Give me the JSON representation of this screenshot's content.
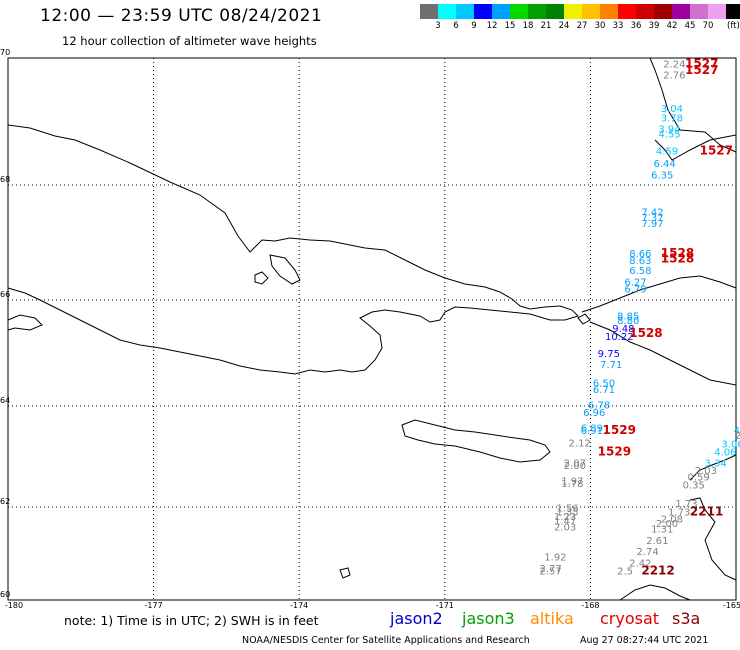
{
  "header": {
    "title": "12:00 — 23:59 UTC 08/24/2021",
    "subtitle": "12 hour collection of altimeter wave heights"
  },
  "colorbar": {
    "colors": [
      "#707070",
      "#00ffff",
      "#00c8ff",
      "#0000ff",
      "#00a0ff",
      "#00d800",
      "#00a000",
      "#008000",
      "#f0f000",
      "#ffc000",
      "#ff8000",
      "#ff0000",
      "#d00000",
      "#a00000",
      "#a000a0",
      "#d070d0",
      "#f0a0f0",
      "#000000"
    ],
    "ticks": [
      "3",
      "6",
      "9",
      "12",
      "15",
      "18",
      "21",
      "24",
      "27",
      "30",
      "33",
      "36",
      "39",
      "42",
      "45",
      "70"
    ],
    "unit": "(ft)"
  },
  "axes": {
    "lat_labels": [
      "70",
      "68",
      "66",
      "64",
      "62",
      "60"
    ],
    "lon_labels": [
      "-180",
      "-177",
      "-174",
      "-171",
      "-168",
      "-165"
    ]
  },
  "observations": [
    {
      "v": "2.24",
      "c": "#808080",
      "lat": 69.85,
      "lon": -166.5
    },
    {
      "v": "2.76",
      "c": "#808080",
      "lat": 69.68,
      "lon": -166.5
    },
    {
      "v": "3.04",
      "c": "#00c8ff",
      "lat": 69.15,
      "lon": -166.55
    },
    {
      "v": "3.78",
      "c": "#00c8ff",
      "lat": 69.0,
      "lon": -166.55
    },
    {
      "v": "3.94",
      "c": "#00c8ff",
      "lat": 68.83,
      "lon": -166.6
    },
    {
      "v": "4.55",
      "c": "#00c8ff",
      "lat": 68.75,
      "lon": -166.6
    },
    {
      "v": "4.59",
      "c": "#00c8ff",
      "lat": 68.48,
      "lon": -166.65
    },
    {
      "v": "6.44",
      "c": "#00a0ff",
      "lat": 68.28,
      "lon": -166.7
    },
    {
      "v": "6.35",
      "c": "#00a0ff",
      "lat": 68.1,
      "lon": -166.75
    },
    {
      "v": "7.42",
      "c": "#00a0ff",
      "lat": 67.47,
      "lon": -166.95
    },
    {
      "v": "7.37",
      "c": "#00a0ff",
      "lat": 67.37,
      "lon": -166.95
    },
    {
      "v": "7.97",
      "c": "#00a0ff",
      "lat": 67.27,
      "lon": -166.95
    },
    {
      "v": "8.66",
      "c": "#00a0ff",
      "lat": 66.75,
      "lon": -167.2
    },
    {
      "v": "8.63",
      "c": "#00a0ff",
      "lat": 66.63,
      "lon": -167.2
    },
    {
      "v": "6.58",
      "c": "#00a0ff",
      "lat": 66.45,
      "lon": -167.2
    },
    {
      "v": "6.27",
      "c": "#00a0ff",
      "lat": 66.25,
      "lon": -167.3
    },
    {
      "v": "6.79",
      "c": "#00a0ff",
      "lat": 66.13,
      "lon": -167.3
    },
    {
      "v": "8.85",
      "c": "#00a0ff",
      "lat": 65.63,
      "lon": -167.45
    },
    {
      "v": "8.80",
      "c": "#00a0ff",
      "lat": 65.55,
      "lon": -167.45
    },
    {
      "v": "9.48",
      "c": "#0000ff",
      "lat": 65.4,
      "lon": -167.55
    },
    {
      "v": "10.22",
      "c": "#0000ff",
      "lat": 65.25,
      "lon": -167.7
    },
    {
      "v": "9.75",
      "c": "#0000ff",
      "lat": 64.92,
      "lon": -167.85
    },
    {
      "v": "7.71",
      "c": "#00a0ff",
      "lat": 64.72,
      "lon": -167.8
    },
    {
      "v": "6.50",
      "c": "#00a0ff",
      "lat": 64.37,
      "lon": -167.95
    },
    {
      "v": "6.71",
      "c": "#00a0ff",
      "lat": 64.25,
      "lon": -167.95
    },
    {
      "v": "6.78",
      "c": "#00a0ff",
      "lat": 63.95,
      "lon": -168.05
    },
    {
      "v": "6.96",
      "c": "#00a0ff",
      "lat": 63.8,
      "lon": -168.15
    },
    {
      "v": "6.89",
      "c": "#00a0ff",
      "lat": 63.5,
      "lon": -168.2
    },
    {
      "v": "6.91",
      "c": "#00a0ff",
      "lat": 63.45,
      "lon": -168.2
    },
    {
      "v": "2.12",
      "c": "#808080",
      "lat": 63.2,
      "lon": -168.45
    },
    {
      "v": "2.07",
      "c": "#808080",
      "lat": 62.8,
      "lon": -168.55
    },
    {
      "v": "2.00",
      "c": "#808080",
      "lat": 62.75,
      "lon": -168.55
    },
    {
      "v": "1.97",
      "c": "#808080",
      "lat": 62.45,
      "lon": -168.6
    },
    {
      "v": "1.78",
      "c": "#808080",
      "lat": 62.4,
      "lon": -168.6
    },
    {
      "v": "1.56",
      "c": "#808080",
      "lat": 61.9,
      "lon": -168.7
    },
    {
      "v": "1.35",
      "c": "#808080",
      "lat": 61.82,
      "lon": -168.7
    },
    {
      "v": "1.23",
      "c": "#808080",
      "lat": 61.72,
      "lon": -168.75
    },
    {
      "v": "1.47",
      "c": "#808080",
      "lat": 61.62,
      "lon": -168.75
    },
    {
      "v": "2.03",
      "c": "#808080",
      "lat": 61.5,
      "lon": -168.75
    },
    {
      "v": "1.92",
      "c": "#808080",
      "lat": 60.85,
      "lon": -168.95
    },
    {
      "v": "2.77",
      "c": "#808080",
      "lat": 60.6,
      "lon": -169.05
    },
    {
      "v": "2.57",
      "c": "#808080",
      "lat": 60.55,
      "lon": -169.05
    },
    {
      "v": "4",
      "c": "#00c8ff",
      "lat": 63.45,
      "lon": -165.05
    },
    {
      "v": "2.5",
      "c": "#808080",
      "lat": 63.35,
      "lon": -165.02
    },
    {
      "v": "3.06",
      "c": "#00c8ff",
      "lat": 63.18,
      "lon": -165.3
    },
    {
      "v": "4.06",
      "c": "#00c8ff",
      "lat": 63.02,
      "lon": -165.45
    },
    {
      "v": "3.34",
      "c": "#00c8ff",
      "lat": 62.8,
      "lon": -165.65
    },
    {
      "v": "2.03",
      "c": "#808080",
      "lat": 62.65,
      "lon": -165.85
    },
    {
      "v": "0.59",
      "c": "#808080",
      "lat": 62.52,
      "lon": -166.0
    },
    {
      "v": "0.35",
      "c": "#808080",
      "lat": 62.37,
      "lon": -166.1
    },
    {
      "v": "1.73",
      "c": "#808080",
      "lat": 62.0,
      "lon": -166.25
    },
    {
      "v": "1.73",
      "c": "#808080",
      "lat": 61.82,
      "lon": -166.4
    },
    {
      "v": "2.08",
      "c": "#808080",
      "lat": 61.67,
      "lon": -166.55
    },
    {
      "v": "2.00",
      "c": "#808080",
      "lat": 61.57,
      "lon": -166.65
    },
    {
      "v": "1.31",
      "c": "#808080",
      "lat": 61.45,
      "lon": -166.75
    },
    {
      "v": "2.61",
      "c": "#808080",
      "lat": 61.2,
      "lon": -166.85
    },
    {
      "v": "2.74",
      "c": "#808080",
      "lat": 60.97,
      "lon": -167.05
    },
    {
      "v": "2.42",
      "c": "#808080",
      "lat": 60.72,
      "lon": -167.2
    },
    {
      "v": "2.5",
      "c": "#808080",
      "lat": 60.55,
      "lon": -167.45
    }
  ],
  "passes": [
    {
      "t": "1527",
      "c": "#d00000",
      "lat": 69.85,
      "lon": -166.05
    },
    {
      "t": "1527",
      "c": "#d00000",
      "lat": 69.75,
      "lon": -166.05
    },
    {
      "t": "1527",
      "c": "#d00000",
      "lat": 68.48,
      "lon": -165.75
    },
    {
      "t": "1528",
      "c": "#d00000",
      "lat": 66.75,
      "lon": -166.55
    },
    {
      "t": "1528",
      "c": "#d00000",
      "lat": 66.65,
      "lon": -166.55
    },
    {
      "t": "1528",
      "c": "#d00000",
      "lat": 65.3,
      "lon": -167.2
    },
    {
      "t": "1529",
      "c": "#d00000",
      "lat": 63.45,
      "lon": -167.75
    },
    {
      "t": "1529",
      "c": "#d00000",
      "lat": 63.02,
      "lon": -167.85
    },
    {
      "t": "2211",
      "c": "#8b0000",
      "lat": 61.82,
      "lon": -165.95
    },
    {
      "t": "2212",
      "c": "#8b0000",
      "lat": 60.55,
      "lon": -166.95
    }
  ],
  "footer": {
    "note": "note:  1) Time is in UTC;  2) SWH is in feet",
    "legend": [
      {
        "label": "jason2",
        "color": "#0000cc"
      },
      {
        "label": "jason3",
        "color": "#00a000"
      },
      {
        "label": "altika",
        "color": "#ff8c00"
      },
      {
        "label": "cryosat",
        "color": "#e00000"
      },
      {
        "label": "s3a",
        "color": "#8b0000"
      }
    ],
    "credit": "NOAA/NESDIS Center for Satellite Applications and Research",
    "timestamp": "Aug 27 08:27:44 UTC 2021"
  }
}
